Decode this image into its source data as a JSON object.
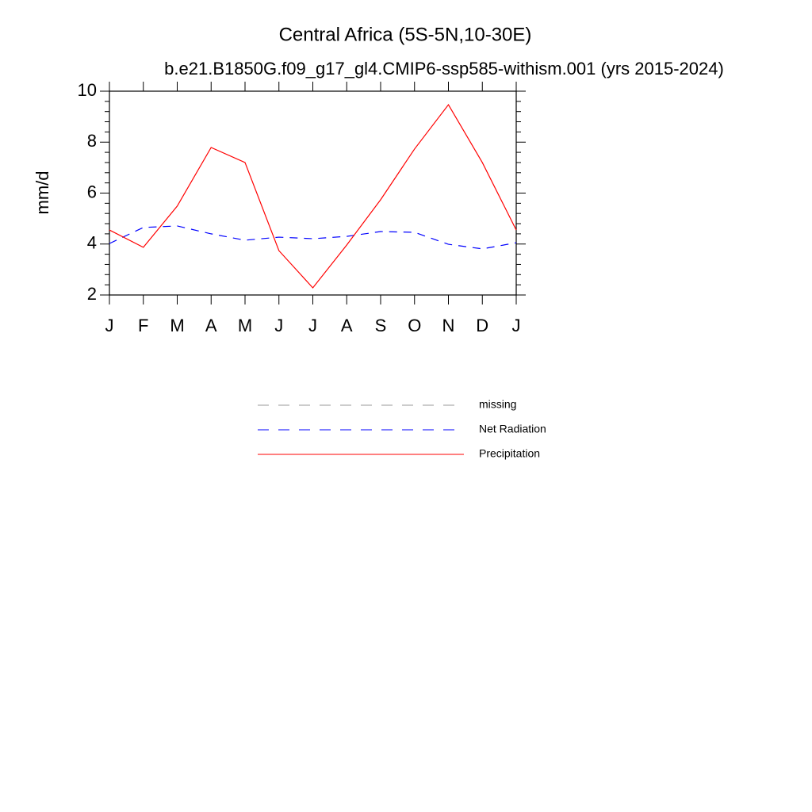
{
  "chart_data": {
    "type": "line",
    "title": "Central Africa (5S-5N,10-30E)",
    "subtitle": "b.e21.B1850G.f09_g17_gl4.CMIP6-ssp585-withism.001 (yrs 2015-2024)",
    "y_label": "mm/d",
    "categories": [
      "J",
      "F",
      "M",
      "A",
      "M",
      "J",
      "J",
      "A",
      "S",
      "O",
      "N",
      "D",
      "J"
    ],
    "series": [
      {
        "name": "missing",
        "color": "#999999",
        "dash": true,
        "values": [
          null,
          null,
          null,
          null,
          null,
          null,
          null,
          null,
          null,
          null,
          null,
          null,
          null
        ]
      },
      {
        "name": "Net Radiation",
        "color": "#0000ff",
        "dash": true,
        "values": [
          4.02,
          4.65,
          4.71,
          4.4,
          4.15,
          4.27,
          4.21,
          4.3,
          4.49,
          4.46,
          3.99,
          3.81,
          4.05
        ]
      },
      {
        "name": "Precipitation",
        "color": "#ff0000",
        "dash": false,
        "values": [
          4.55,
          3.87,
          5.49,
          7.79,
          7.2,
          3.74,
          2.28,
          3.96,
          5.74,
          7.73,
          9.47,
          7.2,
          4.55
        ]
      }
    ],
    "ylim": [
      2,
      10
    ],
    "yticks": [
      2,
      4,
      6,
      8,
      10
    ],
    "yminorticks": [
      2.4,
      2.8,
      3.2,
      3.6,
      4.4,
      4.8,
      5.2,
      5.6,
      6.4,
      6.8,
      7.2,
      7.6,
      8.4,
      8.8,
      9.2,
      9.6
    ],
    "grid": false
  }
}
